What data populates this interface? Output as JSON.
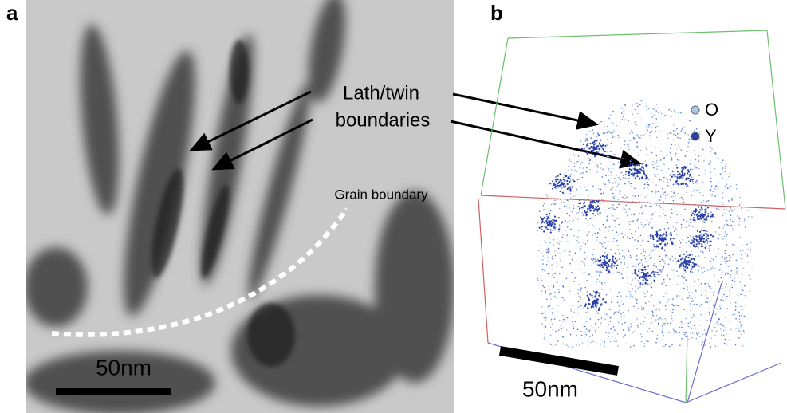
{
  "panel_a": {
    "label": "a",
    "annotation_line1": "Lath/twin",
    "annotation_line2": "boundaries",
    "grain_label": "Grain boundary",
    "scale_bar": "50nm"
  },
  "panel_b": {
    "label": "b",
    "legend": [
      {
        "name": "O",
        "color": "#a9cbe6"
      },
      {
        "name": "Y",
        "color": "#2a3fa8"
      }
    ],
    "scale_bar": "50nm"
  }
}
